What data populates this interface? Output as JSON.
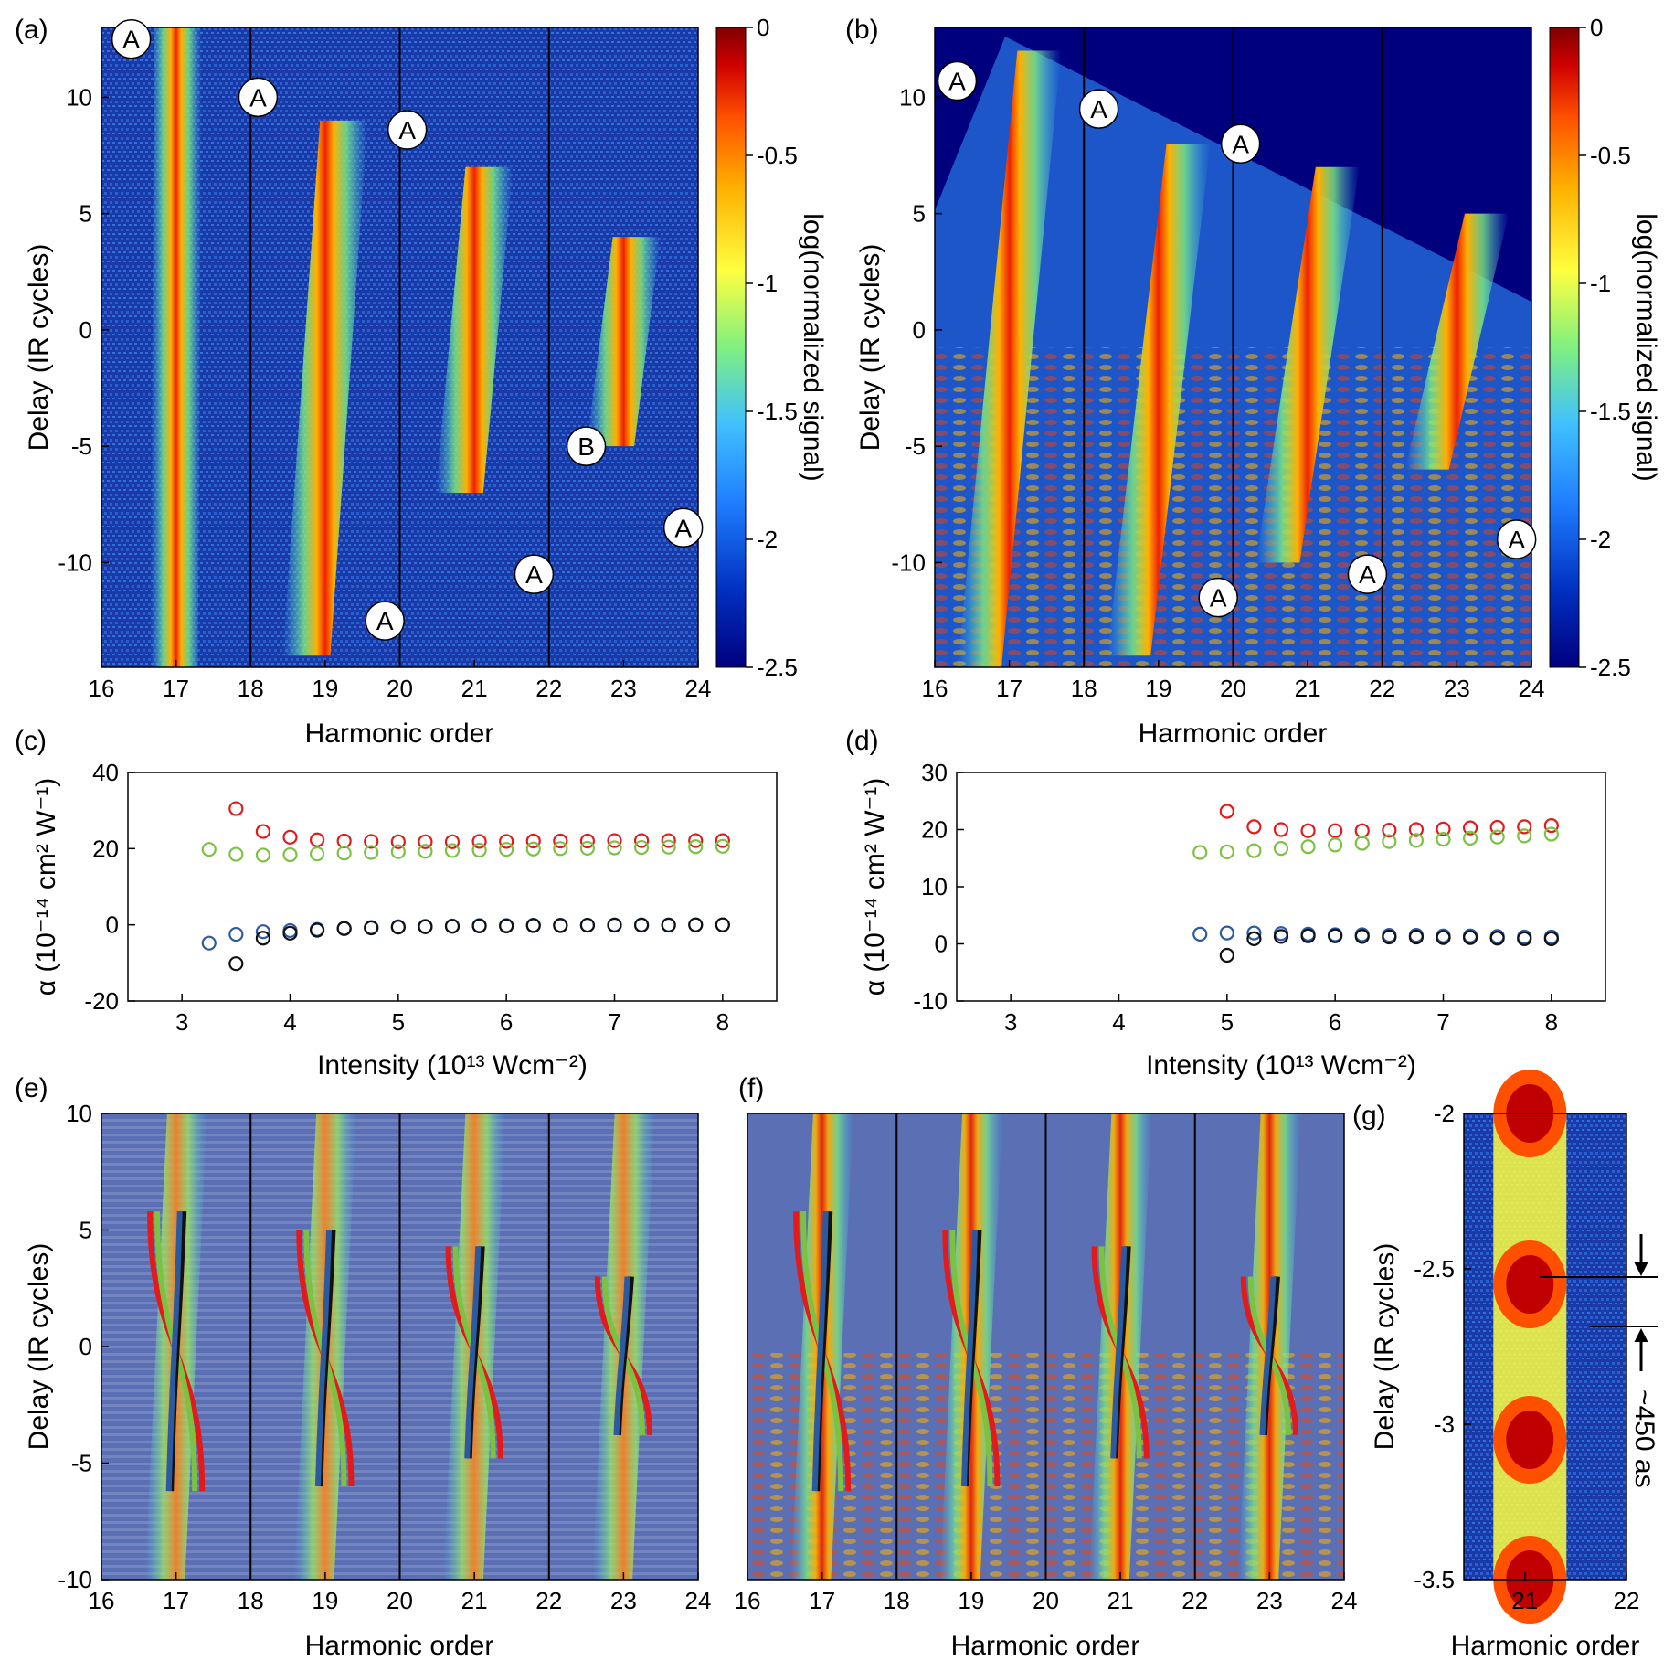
{
  "figure": {
    "harmonic_label": "Harmonic order",
    "delay_label": "Delay (IR cycles)",
    "colorbar_label": "log(normalized signal)",
    "alpha_label": "α (10⁻¹⁴ cm² W⁻¹)",
    "intensity_label": "Intensity (10¹³ Wcm⁻²)",
    "g_annotation": "~450 as"
  },
  "panels": {
    "a": "(a)",
    "b": "(b)",
    "c": "(c)",
    "d": "(d)",
    "e": "(e)",
    "f": "(f)",
    "g": "(g)"
  },
  "colors": {
    "red": "#e31a1c",
    "green": "#7cc242",
    "blue": "#2c5aa0",
    "black": "#111111",
    "colormap": [
      "#00007f",
      "#0030c0",
      "#2080ff",
      "#40c0ff",
      "#80f080",
      "#ffff40",
      "#ffb000",
      "#ff5000",
      "#d00000",
      "#800000"
    ]
  },
  "chart_data": [
    {
      "id": "a",
      "type": "heatmap",
      "xlabel": "Harmonic order",
      "ylabel": "Delay (IR cycles)",
      "xlim": [
        16,
        24
      ],
      "ylim": [
        -14.5,
        13
      ],
      "xticks": [
        "16",
        "17",
        "18",
        "19",
        "20",
        "21",
        "22",
        "23",
        "24"
      ],
      "yticks": [
        "-10",
        "-5",
        "0",
        "5",
        "10"
      ],
      "dividers_at": [
        18,
        20,
        22
      ],
      "bands": [
        {
          "harmonic": 17,
          "delay_range": [
            -14.5,
            13
          ]
        },
        {
          "harmonic": 19,
          "delay_range": [
            -14,
            9
          ]
        },
        {
          "harmonic": 21,
          "delay_range": [
            -7,
            7
          ]
        },
        {
          "harmonic": 23,
          "delay_range": [
            -5,
            4
          ]
        }
      ],
      "markers": [
        {
          "label": "A",
          "x": 16.4,
          "y": 12.5
        },
        {
          "label": "A",
          "x": 18.1,
          "y": 10
        },
        {
          "label": "A",
          "x": 20.1,
          "y": 8.6
        },
        {
          "label": "B",
          "x": 22.5,
          "y": -5
        },
        {
          "label": "A",
          "x": 19.8,
          "y": -12.5
        },
        {
          "label": "A",
          "x": 21.8,
          "y": -10.5
        },
        {
          "label": "A",
          "x": 23.8,
          "y": -8.5
        }
      ],
      "colorbar": {
        "range": [
          -2.5,
          0
        ],
        "ticks": [
          "0",
          "-0.5",
          "-1",
          "-1.5",
          "-2",
          "-2.5"
        ],
        "label": "log(normalized signal)"
      }
    },
    {
      "id": "b",
      "type": "heatmap",
      "xlabel": "Harmonic order",
      "ylabel": "Delay (IR cycles)",
      "xlim": [
        16,
        24
      ],
      "ylim": [
        -14.5,
        13
      ],
      "xticks": [
        "16",
        "17",
        "18",
        "19",
        "20",
        "21",
        "22",
        "23",
        "24"
      ],
      "yticks": [
        "-10",
        "-5",
        "0",
        "5",
        "10"
      ],
      "dividers_at": [
        18,
        20,
        22
      ],
      "markers": [
        {
          "label": "A",
          "x": 16.3,
          "y": 10.7
        },
        {
          "label": "A",
          "x": 18.2,
          "y": 9.5
        },
        {
          "label": "A",
          "x": 20.1,
          "y": 8
        },
        {
          "label": "A",
          "x": 19.8,
          "y": -11.5
        },
        {
          "label": "A",
          "x": 21.8,
          "y": -10.5
        },
        {
          "label": "A",
          "x": 23.8,
          "y": -9
        }
      ],
      "colorbar": {
        "range": [
          -2.5,
          0
        ],
        "ticks": [
          "0",
          "-0.5",
          "-1",
          "-1.5",
          "-2",
          "-2.5"
        ],
        "label": "log(normalized signal)"
      }
    },
    {
      "id": "c",
      "type": "scatter",
      "xlabel": "Intensity (10¹³ Wcm⁻²)",
      "ylabel": "α (10⁻¹⁴ cm² W⁻¹)",
      "xlim": [
        2.5,
        8.5
      ],
      "ylim": [
        -20,
        40
      ],
      "xticks": [
        "3",
        "4",
        "5",
        "6",
        "7",
        "8"
      ],
      "yticks": [
        "-20",
        "0",
        "20",
        "40"
      ],
      "series": [
        {
          "color": "red",
          "x": [
            3.5,
            3.75,
            4,
            4.25,
            4.5,
            4.75,
            5,
            5.25,
            5.5,
            5.75,
            6,
            6.25,
            6.5,
            6.75,
            7,
            7.25,
            7.5,
            7.75,
            8
          ],
          "y": [
            30.5,
            24.5,
            23,
            22.3,
            22,
            21.9,
            21.8,
            21.8,
            21.8,
            21.9,
            21.9,
            22,
            22,
            22,
            22.1,
            22.1,
            22.1,
            22.1,
            22.1
          ]
        },
        {
          "color": "green",
          "x": [
            3.25,
            3.5,
            3.75,
            4,
            4.25,
            4.5,
            4.75,
            5,
            5.25,
            5.5,
            5.75,
            6,
            6.25,
            6.5,
            6.75,
            7,
            7.25,
            7.5,
            7.75,
            8
          ],
          "y": [
            19.8,
            18.5,
            18.3,
            18.4,
            18.6,
            18.8,
            19,
            19.2,
            19.3,
            19.5,
            19.6,
            19.8,
            19.9,
            20,
            20.1,
            20.2,
            20.3,
            20.4,
            20.5,
            20.6
          ]
        },
        {
          "color": "blue",
          "x": [
            3.25,
            3.5,
            3.75,
            4,
            4.25,
            4.5,
            4.75,
            5,
            5.25,
            5.5,
            5.75,
            6,
            6.25,
            6.5,
            6.75,
            7,
            7.25,
            7.5,
            7.75,
            8
          ],
          "y": [
            -4.8,
            -2.5,
            -1.8,
            -1.5,
            -1.2,
            -0.9,
            -0.7,
            -0.5,
            -0.4,
            -0.3,
            -0.2,
            -0.2,
            -0.1,
            -0.1,
            -0.1,
            0,
            0,
            0,
            0,
            0
          ]
        },
        {
          "color": "black",
          "x": [
            3.5,
            3.75,
            4,
            4.25,
            4.5,
            4.75,
            5,
            5.25,
            5.5,
            5.75,
            6,
            6.25,
            6.5,
            6.75,
            7,
            7.25,
            7.5,
            7.75,
            8
          ],
          "y": [
            -10.2,
            -3.5,
            -2.2,
            -1.4,
            -1,
            -0.8,
            -0.6,
            -0.5,
            -0.4,
            -0.3,
            -0.3,
            -0.2,
            -0.2,
            -0.1,
            -0.1,
            -0.1,
            -0.1,
            0,
            0
          ]
        }
      ]
    },
    {
      "id": "d",
      "type": "scatter",
      "xlabel": "Intensity (10¹³ Wcm⁻²)",
      "ylabel": "α (10⁻¹⁴ cm² W⁻¹)",
      "xlim": [
        2.5,
        8.5
      ],
      "ylim": [
        -10,
        30
      ],
      "xticks": [
        "3",
        "4",
        "5",
        "6",
        "7",
        "8"
      ],
      "yticks": [
        "-10",
        "0",
        "10",
        "20",
        "30"
      ],
      "series": [
        {
          "color": "red",
          "x": [
            5,
            5.25,
            5.5,
            5.75,
            6,
            6.25,
            6.5,
            6.75,
            7,
            7.25,
            7.5,
            7.75,
            8
          ],
          "y": [
            23.2,
            20.5,
            20,
            19.8,
            19.8,
            19.8,
            19.9,
            20,
            20.1,
            20.3,
            20.4,
            20.5,
            20.7
          ]
        },
        {
          "color": "green",
          "x": [
            4.75,
            5,
            5.25,
            5.5,
            5.75,
            6,
            6.25,
            6.5,
            6.75,
            7,
            7.25,
            7.5,
            7.75,
            8
          ],
          "y": [
            16,
            16.1,
            16.3,
            16.7,
            17,
            17.3,
            17.6,
            17.9,
            18.1,
            18.3,
            18.5,
            18.7,
            18.9,
            19.2
          ]
        },
        {
          "color": "blue",
          "x": [
            4.75,
            5,
            5.25,
            5.5,
            5.75,
            6,
            6.25,
            6.5,
            6.75,
            7,
            7.25,
            7.5,
            7.75,
            8
          ],
          "y": [
            1.7,
            1.9,
            1.9,
            1.8,
            1.7,
            1.6,
            1.6,
            1.5,
            1.5,
            1.4,
            1.4,
            1.3,
            1.2,
            1.2
          ]
        },
        {
          "color": "black",
          "x": [
            5,
            5.25,
            5.5,
            5.75,
            6,
            6.25,
            6.5,
            6.75,
            7,
            7.25,
            7.5,
            7.75,
            8
          ],
          "y": [
            -2,
            0.9,
            1.3,
            1.4,
            1.4,
            1.3,
            1.2,
            1.2,
            1.1,
            1.1,
            1,
            0.9,
            0.9
          ]
        }
      ]
    },
    {
      "id": "e",
      "type": "heatmap",
      "xlabel": "Harmonic order",
      "ylabel": "Delay (IR cycles)",
      "xlim": [
        16,
        24
      ],
      "ylim": [
        -10,
        10
      ],
      "xticks": [
        "16",
        "17",
        "18",
        "19",
        "20",
        "21",
        "22",
        "23",
        "24"
      ],
      "yticks": [
        "-10",
        "-5",
        "0",
        "5",
        "10"
      ],
      "dividers_at": [
        18,
        20,
        22
      ]
    },
    {
      "id": "f",
      "type": "heatmap",
      "xlabel": "Harmonic order",
      "xlim": [
        16,
        24
      ],
      "ylim": [
        -10,
        10
      ],
      "xticks": [
        "16",
        "17",
        "18",
        "19",
        "20",
        "21",
        "22",
        "23",
        "24"
      ],
      "dividers_at": [
        18,
        20,
        22
      ]
    },
    {
      "id": "g",
      "type": "heatmap",
      "xlabel": "Harmonic order",
      "ylabel": "Delay (IR cycles)",
      "xlim": [
        20.4,
        22
      ],
      "ylim": [
        -3.5,
        -2
      ],
      "xticks": [
        "21",
        "22"
      ],
      "yticks": [
        "-2",
        "-2.5",
        "-3",
        "-3.5"
      ],
      "maxima_delays": [
        -2,
        -2.55,
        -3.05,
        -3.5
      ],
      "annotation": "~450 as"
    }
  ]
}
